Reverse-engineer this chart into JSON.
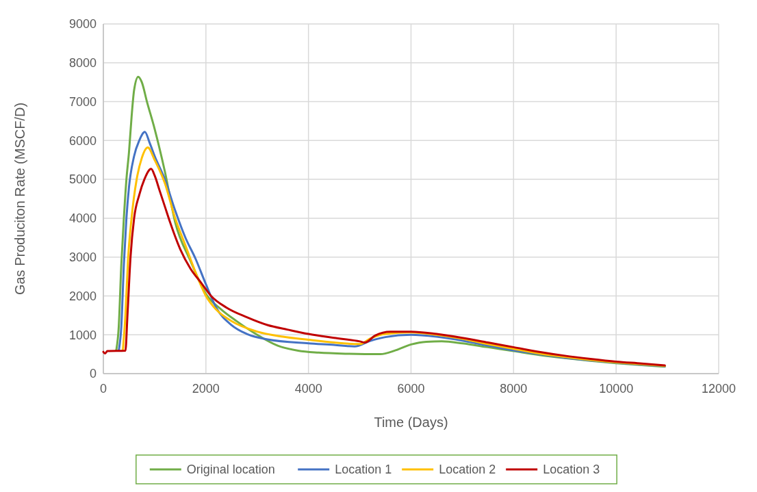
{
  "chart_data": {
    "type": "line",
    "xlabel": "Time (Days)",
    "ylabel": "Gas Produciton Rate (MSCF/D)",
    "xlim": [
      0,
      12000
    ],
    "xticks": [
      0,
      2000,
      4000,
      6000,
      8000,
      10000,
      12000
    ],
    "ylim": [
      0,
      9000
    ],
    "yticks": [
      0,
      1000,
      2000,
      3000,
      4000,
      5000,
      6000,
      7000,
      8000,
      9000
    ],
    "grid": true,
    "legend": "bottom",
    "marker": "none",
    "line_style": "solid",
    "series": [
      {
        "name": "Original location",
        "color": "#70ad47",
        "x": [
          250,
          300,
          350,
          400,
          450,
          500,
          550,
          600,
          680,
          750,
          850,
          1000,
          1200,
          1400,
          1700,
          2000,
          2300,
          2600,
          3000,
          3400,
          3800,
          4200,
          4800,
          5400,
          5700,
          6000,
          6300,
          6600,
          7000,
          7500,
          8000,
          8500,
          9000,
          9500,
          10000,
          10500,
          10950
        ],
        "values": [
          590,
          1200,
          2800,
          4000,
          5000,
          5700,
          6600,
          7300,
          7640,
          7500,
          7000,
          6300,
          5200,
          3900,
          2900,
          2050,
          1650,
          1350,
          1000,
          720,
          590,
          540,
          510,
          500,
          600,
          750,
          820,
          830,
          780,
          680,
          580,
          480,
          400,
          330,
          270,
          220,
          180
        ]
      },
      {
        "name": "Location 1",
        "color": "#4472c4",
        "x": [
          300,
          350,
          400,
          450,
          500,
          600,
          700,
          810,
          900,
          1000,
          1200,
          1400,
          1600,
          1800,
          2000,
          2200,
          2500,
          2800,
          3200,
          4000,
          4500,
          4900,
          5200,
          5500,
          6000,
          6500,
          7000,
          7500,
          8000,
          8500,
          9000,
          9500,
          10000,
          10500,
          10950
        ],
        "values": [
          590,
          1200,
          2800,
          4000,
          4800,
          5600,
          6000,
          6220,
          5950,
          5600,
          5000,
          4200,
          3500,
          2950,
          2300,
          1700,
          1250,
          1020,
          880,
          780,
          740,
          700,
          840,
          940,
          1000,
          950,
          850,
          720,
          600,
          500,
          410,
          340,
          280,
          230,
          190
        ]
      },
      {
        "name": "Location 2",
        "color": "#ffc000",
        "x": [
          380,
          430,
          480,
          550,
          650,
          750,
          866,
          1000,
          1200,
          1400,
          1600,
          1800,
          2000,
          2200,
          2500,
          3000,
          3500,
          4000,
          4500,
          5000,
          5200,
          5500,
          6000,
          6500,
          7000,
          7500,
          8000,
          8500,
          9000,
          9500,
          10000,
          10500,
          10950
        ],
        "values": [
          590,
          1500,
          2900,
          4000,
          5000,
          5550,
          5820,
          5500,
          4900,
          4000,
          3300,
          2600,
          2000,
          1650,
          1350,
          1080,
          950,
          870,
          800,
          760,
          900,
          1020,
          1060,
          1000,
          900,
          760,
          640,
          520,
          430,
          350,
          290,
          240,
          200
        ]
      },
      {
        "name": "Location 3",
        "color": "#c00000",
        "x": [
          0,
          30,
          80,
          430,
          470,
          530,
          600,
          700,
          800,
          933,
          1000,
          1100,
          1200,
          1300,
          1500,
          1700,
          1900,
          2100,
          2400,
          2800,
          3200,
          3600,
          4000,
          4500,
          5000,
          5100,
          5300,
          5600,
          6000,
          6500,
          7000,
          7500,
          8000,
          8500,
          9000,
          9500,
          10000,
          10500,
          10950
        ],
        "values": [
          560,
          520,
          580,
          590,
          1500,
          3000,
          4000,
          4600,
          5000,
          5270,
          5100,
          4700,
          4300,
          3900,
          3200,
          2700,
          2350,
          2000,
          1700,
          1450,
          1250,
          1130,
          1020,
          920,
          830,
          800,
          980,
          1080,
          1080,
          1020,
          920,
          800,
          680,
          560,
          460,
          380,
          310,
          260,
          210
        ]
      }
    ]
  }
}
